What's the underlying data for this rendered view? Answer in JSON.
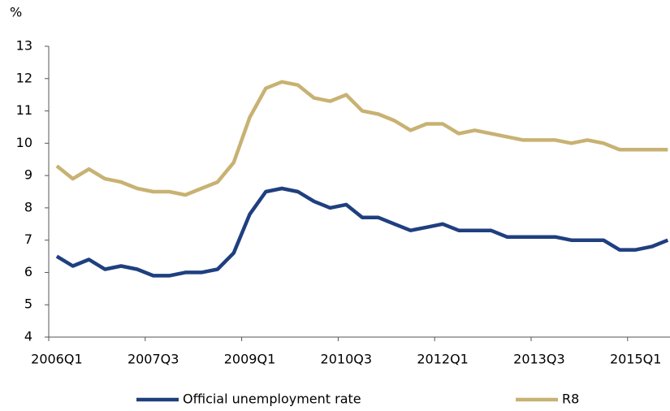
{
  "chart_data": {
    "type": "line",
    "y_unit_label": "%",
    "categories": [
      "2006Q1",
      null,
      null,
      null,
      null,
      null,
      "2007Q3",
      null,
      null,
      null,
      null,
      null,
      "2009Q1",
      null,
      null,
      null,
      null,
      null,
      "2010Q3",
      null,
      null,
      null,
      null,
      null,
      "2012Q1",
      null,
      null,
      null,
      null,
      null,
      "2013Q3",
      null,
      null,
      null,
      null,
      null,
      "2015Q1",
      null,
      null
    ],
    "series": [
      {
        "name": "Official unemployment rate",
        "color": "#1f3f7f",
        "values": [
          6.5,
          6.2,
          6.4,
          6.1,
          6.2,
          6.1,
          5.9,
          5.9,
          6.0,
          6.0,
          6.1,
          6.6,
          7.8,
          8.5,
          8.6,
          8.5,
          8.2,
          8.0,
          8.1,
          7.7,
          7.7,
          7.5,
          7.3,
          7.4,
          7.5,
          7.3,
          7.3,
          7.3,
          7.1,
          7.1,
          7.1,
          7.1,
          7.0,
          7.0,
          7.0,
          6.7,
          6.7,
          6.8,
          7.0
        ]
      },
      {
        "name": "R8",
        "color": "#c8b273",
        "values": [
          9.3,
          8.9,
          9.2,
          8.9,
          8.8,
          8.6,
          8.5,
          8.5,
          8.4,
          8.6,
          8.8,
          9.4,
          10.8,
          11.7,
          11.9,
          11.8,
          11.4,
          11.3,
          11.5,
          11.0,
          10.9,
          10.7,
          10.4,
          10.6,
          10.6,
          10.3,
          10.4,
          10.3,
          10.2,
          10.1,
          10.1,
          10.1,
          10.0,
          10.1,
          10.0,
          9.8,
          9.8,
          9.8,
          9.8
        ]
      }
    ],
    "ylim": [
      4,
      13
    ],
    "yticks": [
      4,
      5,
      6,
      7,
      8,
      9,
      10,
      11,
      12,
      13
    ],
    "grid": false
  }
}
